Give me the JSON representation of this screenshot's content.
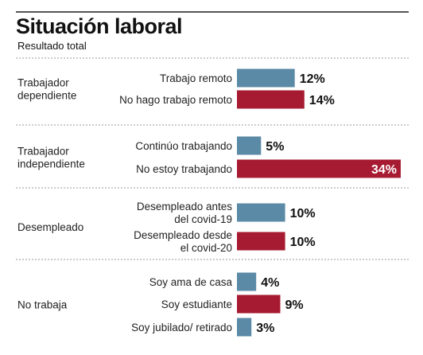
{
  "header": {
    "title": "Situación laboral",
    "subtitle": "Resultado total"
  },
  "chart_data": {
    "type": "bar",
    "orientation": "horizontal",
    "title": "Situación laboral",
    "subtitle": "Resultado total",
    "unit": "%",
    "xlim": [
      0,
      34
    ],
    "grid": false,
    "legend": "none",
    "colors": {
      "primary": "#5a8aa6",
      "secondary": "#a61b31"
    },
    "groups": [
      {
        "name": [
          "Trabajador",
          "dependiente"
        ],
        "items": [
          {
            "label": [
              "Trabajo remoto"
            ],
            "value": 12,
            "display": "12%",
            "color": "primary"
          },
          {
            "label": [
              "No hago trabajo remoto"
            ],
            "value": 14,
            "display": "14%",
            "color": "secondary"
          }
        ]
      },
      {
        "name": [
          "Trabajador",
          "independiente"
        ],
        "items": [
          {
            "label": [
              "Continúo trabajando"
            ],
            "value": 5,
            "display": "5%",
            "color": "primary"
          },
          {
            "label": [
              "No estoy trabajando"
            ],
            "value": 34,
            "display": "34%",
            "color": "secondary"
          }
        ]
      },
      {
        "name": [
          "Desempleado"
        ],
        "items": [
          {
            "label": [
              "Desempleado antes",
              "del covid-19"
            ],
            "value": 10,
            "display": "10%",
            "color": "primary"
          },
          {
            "label": [
              "Desempleado desde",
              "el covid-20"
            ],
            "value": 10,
            "display": "10%",
            "color": "secondary"
          }
        ]
      },
      {
        "name": [
          "No trabaja"
        ],
        "items": [
          {
            "label": [
              "Soy ama de casa"
            ],
            "value": 4,
            "display": "4%",
            "color": "primary"
          },
          {
            "label": [
              "Soy estudiante"
            ],
            "value": 9,
            "display": "9%",
            "color": "secondary"
          },
          {
            "label": [
              "Soy jubilado/ retirado"
            ],
            "value": 3,
            "display": "3%",
            "color": "primary"
          }
        ]
      }
    ]
  }
}
